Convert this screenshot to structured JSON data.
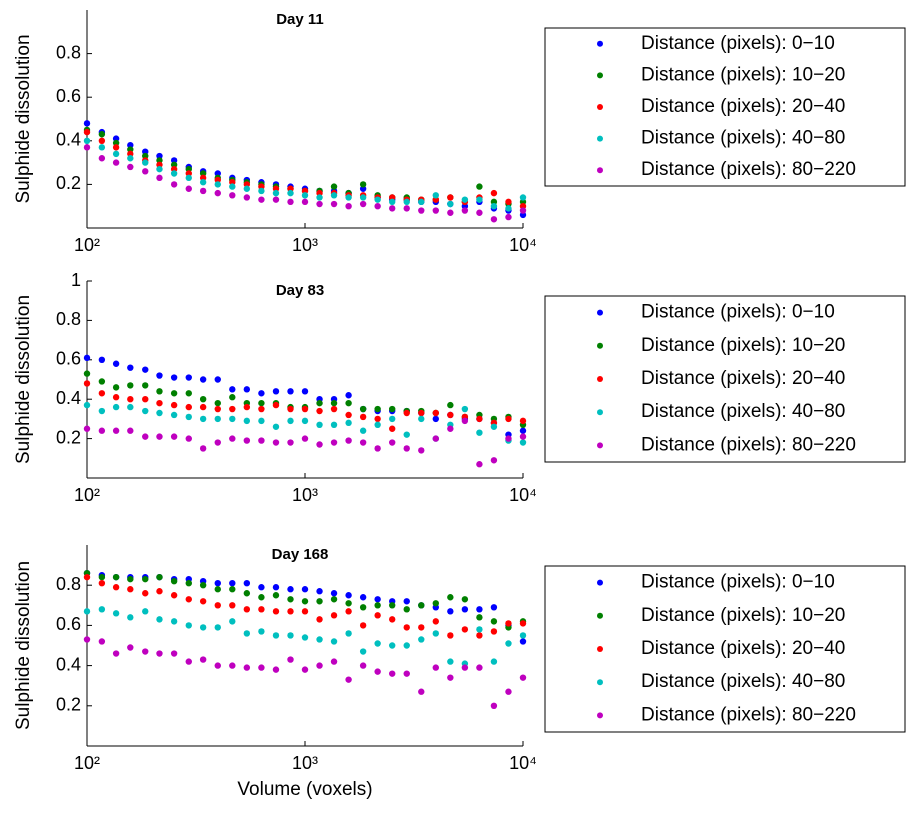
{
  "chart_data": [
    {
      "type": "scatter",
      "title": "Day 11",
      "y_label": "Sulphide dissolution",
      "log_x": true,
      "grid": false,
      "x": [
        100,
        117,
        136,
        158,
        185,
        215,
        251,
        293,
        341,
        398,
        464,
        541,
        631,
        736,
        858,
        1000,
        1166,
        1359,
        1585,
        1848,
        2154,
        2512,
        2929,
        3415,
        3981,
        4642,
        5412,
        6310,
        7356,
        8577,
        10000
      ],
      "xlim": [
        100,
        10000
      ],
      "xticks": [
        {
          "value": 100,
          "label": "10²"
        },
        {
          "value": 1000,
          "label": "10³"
        },
        {
          "value": 10000,
          "label": "10⁴"
        }
      ],
      "ylim": [
        0,
        1
      ],
      "yticks": [
        0.2,
        0.4,
        0.6,
        0.8
      ],
      "series": [
        {
          "name": "Distance (pixels): 0−10",
          "color": "#0000ff",
          "values": [
            0.48,
            0.44,
            0.41,
            0.38,
            0.35,
            0.33,
            0.31,
            0.28,
            0.26,
            0.25,
            0.23,
            0.22,
            0.21,
            0.2,
            0.19,
            0.18,
            0.17,
            0.17,
            0.16,
            0.18,
            0.14,
            0.13,
            0.13,
            0.12,
            0.12,
            0.11,
            0.1,
            0.12,
            0.09,
            0.08,
            0.06
          ]
        },
        {
          "name": "Distance (pixels): 10−20",
          "color": "#008000",
          "values": [
            0.45,
            0.43,
            0.39,
            0.36,
            0.33,
            0.31,
            0.29,
            0.27,
            0.25,
            0.23,
            0.22,
            0.21,
            0.2,
            0.19,
            0.18,
            0.17,
            0.17,
            0.19,
            0.16,
            0.2,
            0.15,
            0.14,
            0.14,
            0.13,
            0.13,
            0.14,
            0.12,
            0.19,
            0.12,
            0.11,
            0.12
          ]
        },
        {
          "name": "Distance (pixels): 20−40",
          "color": "#ff0000",
          "values": [
            0.44,
            0.4,
            0.37,
            0.34,
            0.31,
            0.29,
            0.27,
            0.25,
            0.23,
            0.22,
            0.21,
            0.2,
            0.19,
            0.18,
            0.18,
            0.17,
            0.16,
            0.16,
            0.15,
            0.15,
            0.14,
            0.14,
            0.13,
            0.13,
            0.13,
            0.14,
            0.12,
            0.14,
            0.16,
            0.12,
            0.1
          ]
        },
        {
          "name": "Distance (pixels): 40−80",
          "color": "#00bfbf",
          "values": [
            0.4,
            0.37,
            0.34,
            0.32,
            0.3,
            0.27,
            0.25,
            0.23,
            0.21,
            0.2,
            0.19,
            0.18,
            0.17,
            0.16,
            0.16,
            0.15,
            0.14,
            0.15,
            0.14,
            0.14,
            0.13,
            0.12,
            0.12,
            0.12,
            0.15,
            0.11,
            0.13,
            0.13,
            0.1,
            0.09,
            0.14
          ]
        },
        {
          "name": "Distance (pixels): 80−220",
          "color": "#bf00bf",
          "values": [
            0.37,
            0.32,
            0.3,
            0.28,
            0.26,
            0.23,
            0.2,
            0.18,
            0.17,
            0.16,
            0.15,
            0.14,
            0.13,
            0.13,
            0.12,
            0.12,
            0.11,
            0.11,
            0.1,
            0.11,
            0.1,
            0.09,
            0.09,
            0.08,
            0.08,
            0.07,
            0.08,
            0.07,
            0.04,
            0.05,
            0.08
          ]
        }
      ]
    },
    {
      "type": "scatter",
      "title": "Day 83",
      "y_label": "Sulphide dissolution",
      "log_x": true,
      "grid": false,
      "x": [
        100,
        117,
        136,
        158,
        185,
        215,
        251,
        293,
        341,
        398,
        464,
        541,
        631,
        736,
        858,
        1000,
        1166,
        1359,
        1585,
        1848,
        2154,
        2512,
        2929,
        3415,
        3981,
        4642,
        5412,
        6310,
        7356,
        8577,
        10000
      ],
      "xlim": [
        100,
        10000
      ],
      "xticks": [
        {
          "value": 100,
          "label": "10²"
        },
        {
          "value": 1000,
          "label": "10³"
        },
        {
          "value": 10000,
          "label": "10⁴"
        }
      ],
      "ylim": [
        0,
        1
      ],
      "yticks": [
        0.2,
        0.4,
        0.6,
        0.8,
        1
      ],
      "series": [
        {
          "name": "Distance (pixels): 0−10",
          "color": "#0000ff",
          "values": [
            0.61,
            0.6,
            0.58,
            0.56,
            0.55,
            0.52,
            0.51,
            0.51,
            0.5,
            0.5,
            0.45,
            0.45,
            0.43,
            0.44,
            0.44,
            0.44,
            0.4,
            0.4,
            0.42,
            0.35,
            0.34,
            0.34,
            0.34,
            0.33,
            0.3,
            0.32,
            0.3,
            0.3,
            0.28,
            0.22,
            0.24
          ]
        },
        {
          "name": "Distance (pixels): 10−20",
          "color": "#008000",
          "values": [
            0.53,
            0.49,
            0.46,
            0.47,
            0.47,
            0.44,
            0.43,
            0.43,
            0.4,
            0.38,
            0.41,
            0.38,
            0.38,
            0.38,
            0.36,
            0.36,
            0.38,
            0.38,
            0.38,
            0.35,
            0.35,
            0.35,
            0.34,
            0.34,
            0.33,
            0.37,
            0.31,
            0.32,
            0.3,
            0.31,
            0.27
          ]
        },
        {
          "name": "Distance (pixels): 20−40",
          "color": "#ff0000",
          "values": [
            0.48,
            0.43,
            0.41,
            0.4,
            0.4,
            0.38,
            0.37,
            0.36,
            0.36,
            0.35,
            0.35,
            0.36,
            0.35,
            0.37,
            0.35,
            0.35,
            0.34,
            0.35,
            0.32,
            0.31,
            0.3,
            0.25,
            0.33,
            0.33,
            0.33,
            0.32,
            0.31,
            0.3,
            0.28,
            0.3,
            0.29
          ]
        },
        {
          "name": "Distance (pixels): 40−80",
          "color": "#00bfbf",
          "values": [
            0.37,
            0.34,
            0.36,
            0.36,
            0.34,
            0.33,
            0.32,
            0.31,
            0.3,
            0.3,
            0.3,
            0.29,
            0.29,
            0.26,
            0.29,
            0.29,
            0.27,
            0.27,
            0.28,
            0.24,
            0.27,
            0.3,
            0.22,
            0.3,
            0.2,
            0.27,
            0.35,
            0.23,
            0.26,
            0.19,
            0.18
          ]
        },
        {
          "name": "Distance (pixels): 80−220",
          "color": "#bf00bf",
          "values": [
            0.25,
            0.24,
            0.24,
            0.24,
            0.21,
            0.21,
            0.21,
            0.2,
            0.15,
            0.18,
            0.2,
            0.19,
            0.19,
            0.18,
            0.18,
            0.2,
            0.17,
            0.18,
            0.19,
            0.18,
            0.15,
            0.18,
            0.15,
            0.14,
            0.2,
            0.25,
            0.29,
            0.07,
            0.09,
            0.2,
            0.21
          ]
        }
      ]
    },
    {
      "type": "scatter",
      "title": "Day 168",
      "y_label": "Sulphide dissolution",
      "x_label": "Volume (voxels)",
      "log_x": true,
      "grid": false,
      "x": [
        100,
        117,
        136,
        158,
        185,
        215,
        251,
        293,
        341,
        398,
        464,
        541,
        631,
        736,
        858,
        1000,
        1166,
        1359,
        1585,
        1848,
        2154,
        2512,
        2929,
        3415,
        3981,
        4642,
        5412,
        6310,
        7356,
        8577,
        10000
      ],
      "xlim": [
        100,
        10000
      ],
      "xticks": [
        {
          "value": 100,
          "label": "10²"
        },
        {
          "value": 1000,
          "label": "10³"
        },
        {
          "value": 10000,
          "label": "10⁴"
        }
      ],
      "ylim": [
        0,
        1
      ],
      "yticks": [
        0.2,
        0.4,
        0.6,
        0.8
      ],
      "series": [
        {
          "name": "Distance (pixels): 0−10",
          "color": "#0000ff",
          "values": [
            0.86,
            0.85,
            0.84,
            0.84,
            0.84,
            0.84,
            0.83,
            0.83,
            0.82,
            0.81,
            0.81,
            0.81,
            0.79,
            0.79,
            0.78,
            0.78,
            0.77,
            0.76,
            0.75,
            0.74,
            0.73,
            0.72,
            0.72,
            0.7,
            0.69,
            0.67,
            0.68,
            0.68,
            0.69,
            0.6,
            0.52
          ]
        },
        {
          "name": "Distance (pixels): 10−20",
          "color": "#008000",
          "values": [
            0.86,
            0.84,
            0.84,
            0.83,
            0.83,
            0.84,
            0.82,
            0.81,
            0.8,
            0.78,
            0.78,
            0.76,
            0.74,
            0.75,
            0.73,
            0.72,
            0.72,
            0.73,
            0.71,
            0.69,
            0.7,
            0.7,
            0.68,
            0.7,
            0.71,
            0.74,
            0.73,
            0.64,
            0.62,
            0.59,
            0.62
          ]
        },
        {
          "name": "Distance (pixels): 20−40",
          "color": "#ff0000",
          "values": [
            0.84,
            0.81,
            0.79,
            0.78,
            0.76,
            0.77,
            0.75,
            0.73,
            0.72,
            0.7,
            0.7,
            0.68,
            0.68,
            0.67,
            0.67,
            0.67,
            0.63,
            0.65,
            0.67,
            0.6,
            0.65,
            0.63,
            0.59,
            0.59,
            0.62,
            0.55,
            0.58,
            0.55,
            0.57,
            0.61,
            0.61
          ]
        },
        {
          "name": "Distance (pixels): 40−80",
          "color": "#00bfbf",
          "values": [
            0.67,
            0.68,
            0.66,
            0.64,
            0.67,
            0.63,
            0.62,
            0.6,
            0.59,
            0.59,
            0.62,
            0.56,
            0.57,
            0.55,
            0.55,
            0.54,
            0.53,
            0.52,
            0.56,
            0.47,
            0.51,
            0.5,
            0.5,
            0.53,
            0.56,
            0.42,
            0.41,
            0.58,
            0.42,
            0.51,
            0.55
          ]
        },
        {
          "name": "Distance (pixels): 80−220",
          "color": "#bf00bf",
          "values": [
            0.53,
            0.52,
            0.46,
            0.49,
            0.47,
            0.46,
            0.46,
            0.42,
            0.43,
            0.4,
            0.4,
            0.39,
            0.39,
            0.38,
            0.43,
            0.38,
            0.4,
            0.42,
            0.33,
            0.4,
            0.37,
            0.36,
            0.36,
            0.27,
            0.39,
            0.34,
            0.39,
            0.39,
            0.2,
            0.27,
            0.34
          ]
        }
      ]
    }
  ]
}
